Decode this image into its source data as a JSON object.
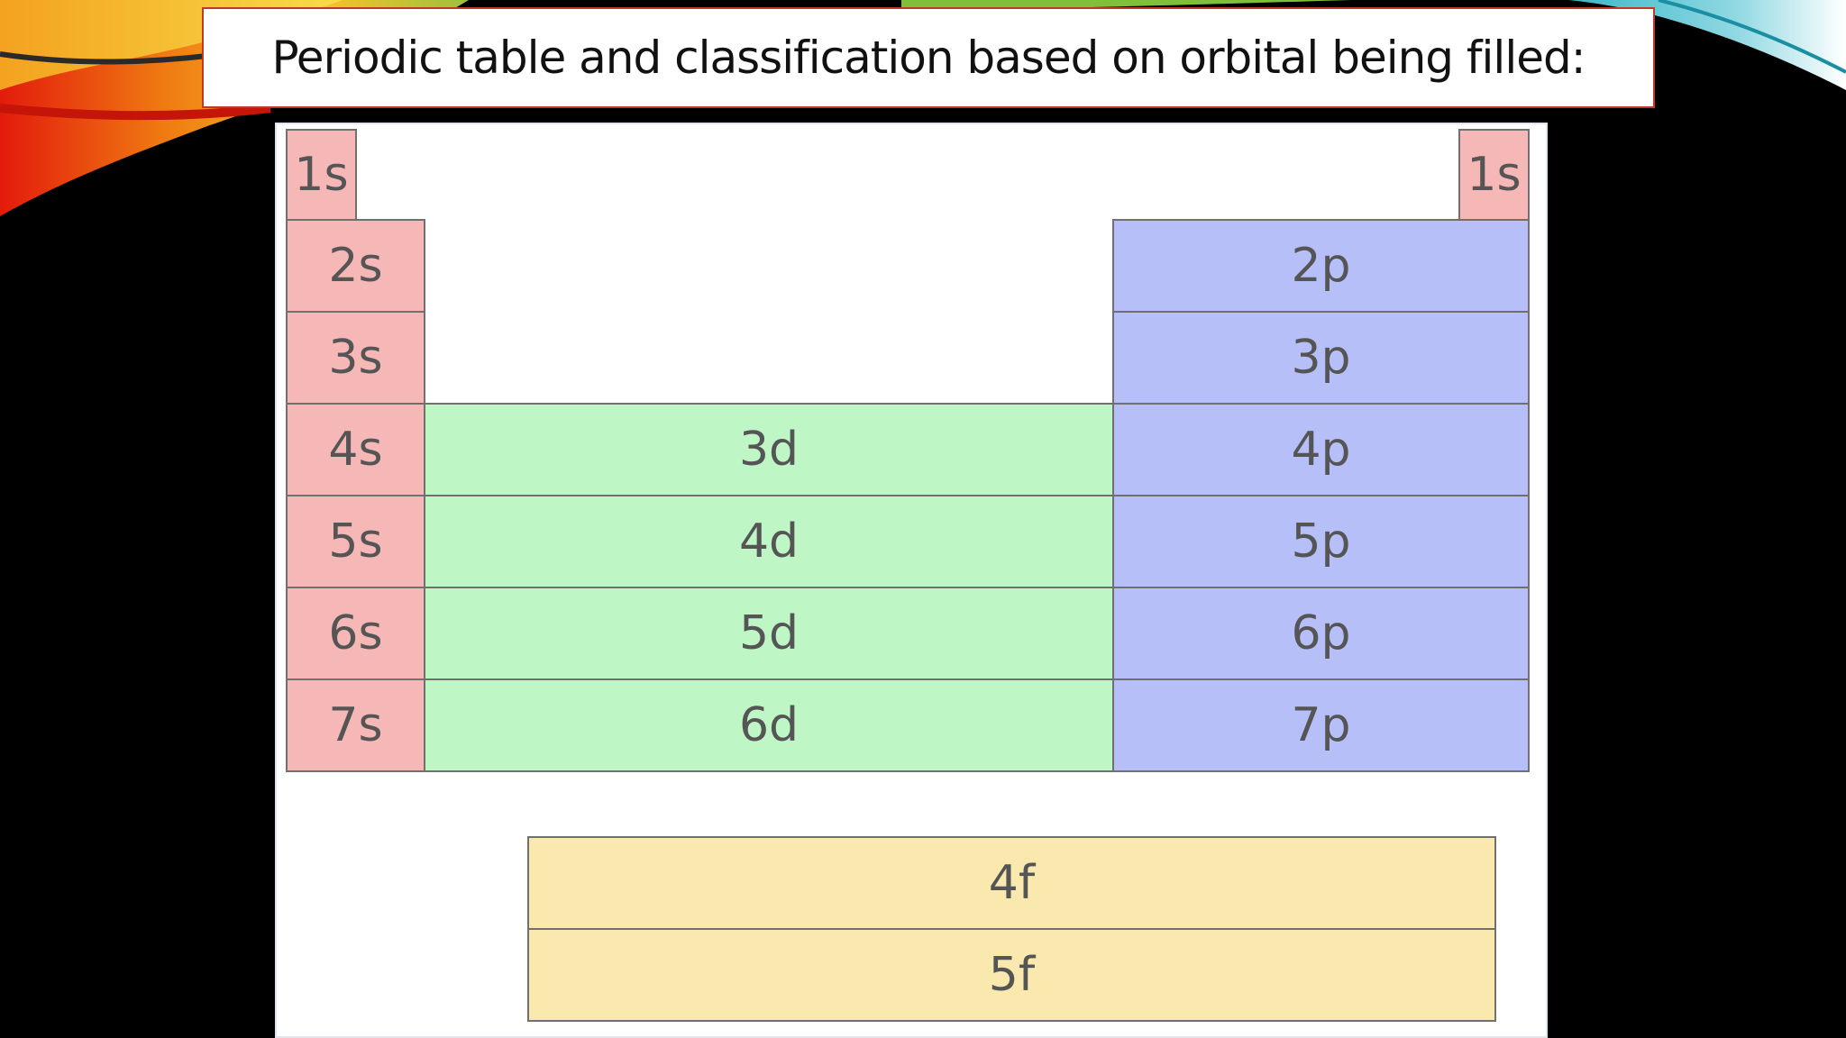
{
  "title": "Periodic table and classification based on orbital being filled:",
  "colors": {
    "s_block": "#f6b8b6",
    "p_block": "#b6bff7",
    "d_block": "#bff6c6",
    "f_block": "#f9e9ae",
    "title_border": "#c0392b"
  },
  "blocks": {
    "s_left": [
      "1s",
      "2s",
      "3s",
      "4s",
      "5s",
      "6s",
      "7s"
    ],
    "s_right": [
      "1s"
    ],
    "p": [
      "2p",
      "3p",
      "4p",
      "5p",
      "6p",
      "7p"
    ],
    "d": [
      "3d",
      "4d",
      "5d",
      "6d"
    ],
    "f": [
      "4f",
      "5f"
    ]
  }
}
